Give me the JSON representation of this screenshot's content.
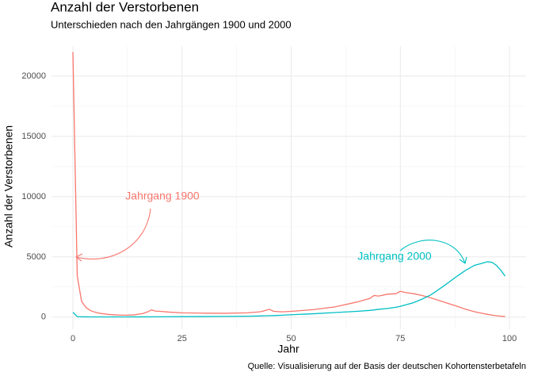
{
  "chart_data": {
    "type": "line",
    "title": "Anzahl der Verstorbenen",
    "subtitle": "Unterschieden nach den Jahrgängen 1900 und 2000",
    "x_label": "Jahr",
    "y_label": "Anzahl der Verstorbenen",
    "caption": "Quelle: Visualisierung auf der Basis der deutschen Kohortensterbetafeln",
    "x": [
      0,
      1,
      2,
      3,
      4,
      5,
      6,
      8,
      10,
      12,
      14,
      16,
      17,
      18,
      19,
      20,
      22,
      25,
      30,
      35,
      40,
      43,
      44,
      45,
      46,
      48,
      50,
      55,
      60,
      65,
      68,
      69,
      70,
      72,
      74,
      75,
      76,
      78,
      80,
      82,
      85,
      88,
      90,
      92,
      94,
      95,
      96,
      97,
      98,
      99
    ],
    "series": [
      {
        "name": "Jahrgang 1900",
        "color": "#F8766D",
        "values": [
          22000,
          3400,
          1300,
          800,
          550,
          420,
          330,
          230,
          180,
          160,
          190,
          300,
          420,
          600,
          500,
          480,
          420,
          360,
          330,
          320,
          360,
          450,
          550,
          650,
          480,
          440,
          480,
          620,
          850,
          1250,
          1550,
          1800,
          1750,
          1900,
          1950,
          2150,
          2050,
          1950,
          1800,
          1600,
          1250,
          900,
          650,
          450,
          300,
          230,
          170,
          120,
          80,
          50
        ]
      },
      {
        "name": "Jahrgang 2000",
        "color": "#00BFC4",
        "values": [
          400,
          50,
          30,
          25,
          20,
          20,
          20,
          20,
          20,
          20,
          25,
          25,
          25,
          30,
          30,
          30,
          35,
          40,
          50,
          60,
          80,
          100,
          110,
          120,
          130,
          160,
          200,
          280,
          380,
          480,
          560,
          600,
          650,
          720,
          820,
          900,
          1000,
          1200,
          1500,
          1850,
          2600,
          3400,
          3900,
          4300,
          4500,
          4600,
          4550,
          4300,
          3900,
          3400
        ]
      }
    ],
    "xlim": [
      -4.9,
      103.8
    ],
    "ylim": [
      -1000,
      22500
    ],
    "xticks": [
      0,
      25,
      50,
      75,
      100
    ],
    "yticks": [
      0,
      5000,
      10000,
      15000,
      20000
    ],
    "xminor": [
      12.5,
      37.5,
      62.5,
      87.5
    ],
    "yminor": [
      2500,
      7500,
      12500,
      17500
    ],
    "grid": true
  }
}
